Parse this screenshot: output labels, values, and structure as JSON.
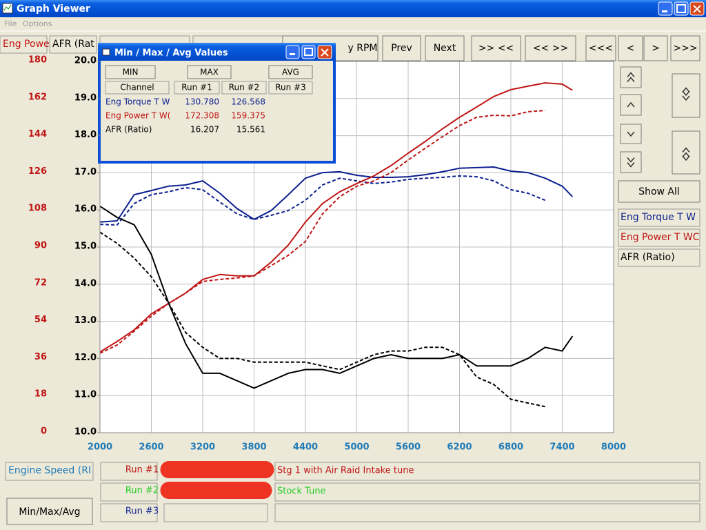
{
  "window": {
    "title": "Graph Viewer",
    "menu": [
      "File",
      "Options"
    ]
  },
  "toolbar": {
    "fields": [
      "Eng Powe",
      "AFR (Rat"
    ],
    "buttons": [
      "y RPM",
      "Prev",
      "Next",
      ">> <<",
      "<< >>",
      "<<<",
      "<",
      ">",
      ">>>"
    ]
  },
  "side": {
    "show_all": "Show All",
    "legend": [
      "Eng Torque T W",
      "Eng Power T WC",
      "AFR (Ratio)"
    ]
  },
  "bottom": {
    "x_channel": "Engine Speed (RI",
    "runs": [
      "Run #1",
      "Run #2",
      "Run #3"
    ],
    "notes": [
      "Stg 1 with Air Raid Intake tune",
      "Stock Tune"
    ],
    "button": "Min/Max/Avg"
  },
  "dialog": {
    "title": "Min / Max / Avg Values",
    "buttons": [
      "MIN",
      "MAX",
      "AVG"
    ],
    "header": [
      "Channel",
      "Run #1",
      "Run #2",
      "Run #3"
    ],
    "rows": [
      [
        "Eng Torque T W",
        "130.780",
        "126.568"
      ],
      [
        "Eng Power T W(",
        "172.308",
        "159.375"
      ],
      [
        "AFR (Ratio)",
        "16.207",
        "15.561"
      ]
    ]
  },
  "graph": {
    "type": "line",
    "x": [
      2000,
      2200,
      2400,
      2600,
      2800,
      3000,
      3200,
      3400,
      3600,
      3800,
      4000,
      4200,
      4400,
      4600,
      4800,
      5000,
      5200,
      5400,
      5600,
      5800,
      6000,
      6200,
      6400,
      6600,
      6800,
      7000,
      7200,
      7400,
      7520
    ],
    "xlim": [
      2000,
      8000
    ],
    "xticks": [
      2000,
      2600,
      3200,
      3800,
      4400,
      5000,
      5600,
      6200,
      6800,
      7400,
      8000
    ],
    "ylim": [
      0,
      180
    ],
    "yticks": [
      0,
      18,
      36,
      54,
      72,
      90,
      108,
      126,
      144,
      162,
      180
    ],
    "y2lim": [
      10,
      20
    ],
    "y2ticks": [
      {
        "value": 10,
        "label": "10.0"
      },
      {
        "value": 11,
        "label": "11.0"
      },
      {
        "value": 12,
        "label": "12.0"
      },
      {
        "value": 13,
        "label": "13.0"
      },
      {
        "value": 14,
        "label": "14.0"
      },
      {
        "value": 15,
        "label": "15.0"
      },
      {
        "value": 16,
        "label": "16.0"
      },
      {
        "value": 17,
        "label": "17.0"
      },
      {
        "value": 18,
        "label": "18.0"
      },
      {
        "value": 19,
        "label": "19.0"
      },
      {
        "value": 20,
        "label": "20.0"
      }
    ],
    "grid": true,
    "series": [
      {
        "color": "#0c1f8f",
        "dash": false,
        "values": [
          102.1,
          102.7,
          115.4,
          117.4,
          119.5,
          120.1,
          122.1,
          116.1,
          108.7,
          103.4,
          107.7,
          115.4,
          123.4,
          126.1,
          126.5,
          124.8,
          123.8,
          123.8,
          124.1,
          125.1,
          126.5,
          128.2,
          128.5,
          128.8,
          126.8,
          126.1,
          123.4,
          119.5,
          114.4
        ]
      },
      {
        "color": "#0c1f8f",
        "dash": true,
        "values": [
          101.0,
          100.7,
          111.1,
          115.4,
          116.8,
          118.8,
          117.8,
          111.8,
          106.1,
          103.4,
          105.4,
          107.7,
          112.7,
          120.1,
          123.4,
          122.1,
          120.8,
          121.5,
          122.8,
          123.4,
          123.8,
          124.5,
          124.1,
          122.1,
          117.8,
          116.1,
          112.7,
          null,
          null
        ]
      },
      {
        "color": "#c01414",
        "dash": false,
        "values": [
          39.1,
          44.2,
          49.9,
          57.6,
          62.6,
          67.7,
          74.3,
          76.7,
          76.0,
          76.0,
          82.7,
          91.0,
          102.1,
          111.1,
          116.8,
          120.8,
          124.5,
          129.5,
          135.5,
          141.2,
          147.3,
          152.9,
          157.9,
          163.0,
          166.3,
          168.0,
          169.6,
          169.0,
          166.0
        ]
      },
      {
        "color": "#c01414",
        "dash": true,
        "values": [
          38.5,
          42.5,
          49.2,
          56.5,
          62.6,
          67.7,
          73.3,
          74.3,
          75.0,
          76.0,
          81.0,
          86.0,
          92.7,
          106.1,
          114.4,
          119.5,
          122.1,
          126.1,
          132.2,
          137.9,
          143.5,
          148.9,
          152.9,
          153.9,
          153.6,
          155.6,
          156.2,
          null,
          null
        ]
      },
      {
        "color": "#000000",
        "dash": false,
        "axis": "y2",
        "values": [
          16.1,
          15.8,
          15.6,
          14.8,
          13.5,
          12.4,
          11.6,
          11.6,
          11.4,
          11.2,
          11.4,
          11.6,
          11.7,
          11.7,
          11.6,
          11.8,
          12.0,
          12.1,
          12.0,
          12.0,
          12.0,
          12.1,
          11.8,
          11.8,
          11.8,
          12.0,
          12.3,
          12.2,
          12.6
        ]
      },
      {
        "color": "#000000",
        "dash": true,
        "axis": "y2",
        "values": [
          15.4,
          15.1,
          14.7,
          14.2,
          13.5,
          12.7,
          12.3,
          12.0,
          12.0,
          11.9,
          11.9,
          11.9,
          11.9,
          11.8,
          11.7,
          11.9,
          12.1,
          12.2,
          12.2,
          12.3,
          12.3,
          12.1,
          11.5,
          11.3,
          10.9,
          10.8,
          10.7,
          null,
          null
        ]
      }
    ]
  }
}
